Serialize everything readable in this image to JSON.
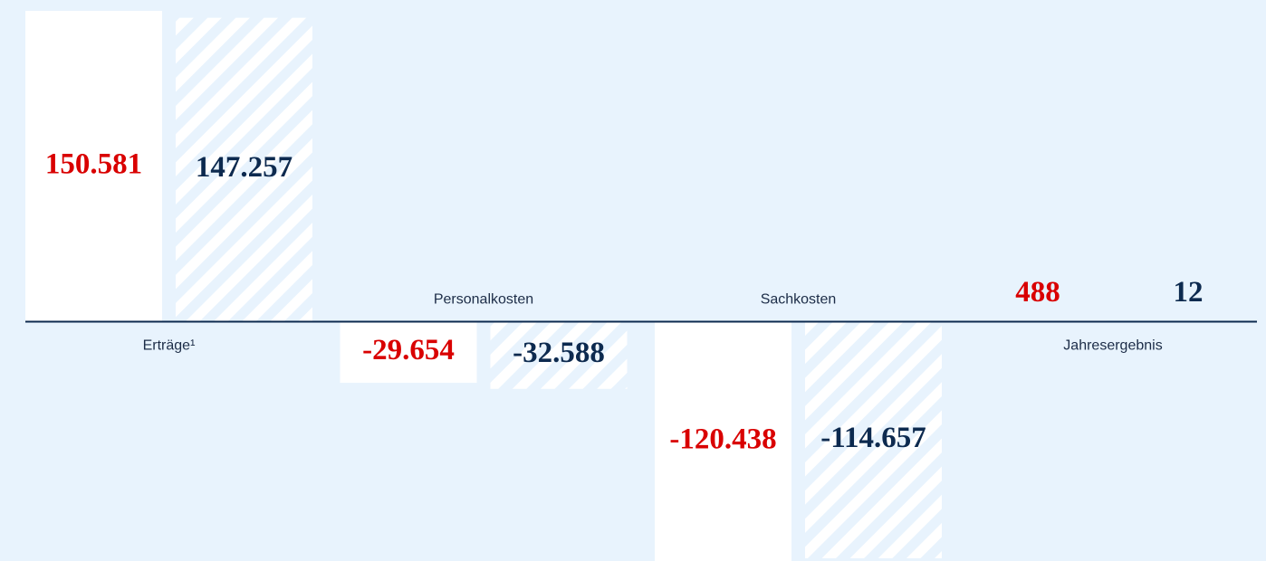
{
  "chart_data": {
    "type": "bar",
    "categories": [
      "Erträge¹",
      "Personalkosten",
      "Sachkosten",
      "Jahresergebnis"
    ],
    "series": [
      {
        "color": "#ffffff",
        "pattern": "solid",
        "label_color": "#d90000",
        "values": [
          150581,
          -29654,
          -120438,
          488
        ],
        "value_labels": [
          "150.581",
          "-29.654",
          "-120.438",
          "488"
        ]
      },
      {
        "color": "#ffffff",
        "pattern": "striped",
        "label_color": "#0d2a4f",
        "values": [
          147257,
          -32588,
          -114657,
          12
        ],
        "value_labels": [
          "147.257",
          "-32.588",
          "-114.657",
          "12"
        ]
      }
    ],
    "ylim": [
      -116000,
      150600
    ]
  }
}
